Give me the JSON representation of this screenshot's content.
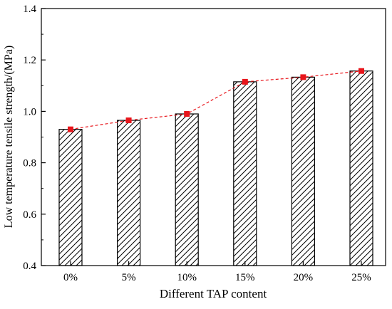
{
  "chart_data": {
    "type": "bar",
    "title": "",
    "xlabel": "Different TAP content",
    "ylabel": "Low temperature tensile strength/(MPa)",
    "categories": [
      "0%",
      "5%",
      "10%",
      "15%",
      "20%",
      "25%"
    ],
    "values": [
      0.93,
      0.965,
      0.99,
      1.115,
      1.133,
      1.157
    ],
    "ylim": [
      0.4,
      1.4
    ],
    "yticks": [
      "0.4",
      "0.6",
      "0.8",
      "1.0",
      "1.2",
      "1.4"
    ],
    "grid": false,
    "legend": "none",
    "bar_pattern": "diagonal hatch",
    "overlay_line": {
      "style": "dashed",
      "marker": "square",
      "values": [
        0.93,
        0.965,
        0.99,
        1.115,
        1.133,
        1.157
      ]
    },
    "colors": {
      "bar_fill": "#ffffff",
      "bar_edge": "#000000",
      "hatch": "#000000",
      "line": "#e8151b",
      "marker": "#e8151b",
      "axis": "#000000"
    }
  }
}
